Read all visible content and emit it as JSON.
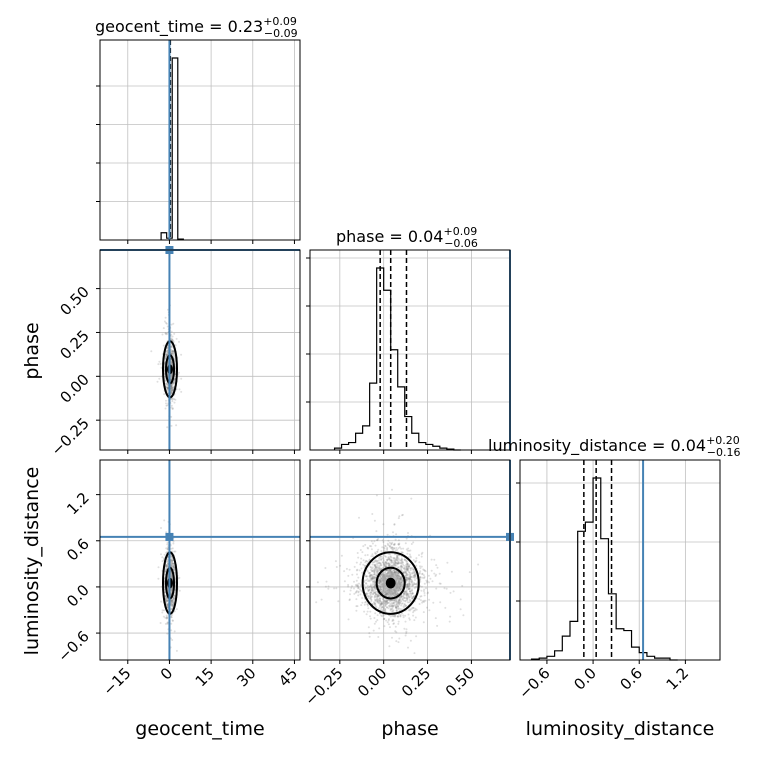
{
  "chart_data": {
    "type": "corner",
    "parameters": [
      "geocent_time",
      "phase",
      "luminosity_distance"
    ],
    "truths": {
      "geocent_time": 0.0,
      "phase": 0.72,
      "luminosity_distance": 0.65
    },
    "colors": {
      "truth": "#4682b4",
      "hist": "#000000",
      "grid": "#c0c0c0",
      "scatter": "#808080"
    },
    "grid": true,
    "titles": [
      {
        "param": "luminosity_distance",
        "prefix": "luminosity_distance = 0.04",
        "plus": "+0.20",
        "minus": "−0.16",
        "median": 0.04,
        "err_plus": 0.2,
        "err_minus": 0.16
      },
      {
        "param": "phase",
        "prefix": "phase = 0.04",
        "plus": "+0.09",
        "minus": "−0.06",
        "median": 0.04,
        "err_plus": 0.09,
        "err_minus": 0.06
      },
      {
        "param": "geocent_time",
        "prefix": "geocent_time = 0.23",
        "plus": "+0.09",
        "minus": "−0.09",
        "median": 0.23,
        "err_plus": 0.09,
        "err_minus": 0.09
      }
    ],
    "axis_labels": {
      "x": [
        "geocent_time",
        "phase",
        "luminosity_distance"
      ],
      "y": [
        "phase",
        "luminosity_distance"
      ]
    },
    "ranges": {
      "geocent_time": [
        -25,
        47
      ],
      "phase": [
        -0.42,
        0.72
      ],
      "luminosity_distance": [
        -0.95,
        1.65
      ]
    },
    "ticks": {
      "geocent_time": {
        "values": [
          -15,
          0,
          15,
          30,
          45
        ],
        "labels": [
          "−15",
          "0",
          "15",
          "30",
          "45"
        ]
      },
      "phase": {
        "values": [
          -0.25,
          0,
          0.25,
          0.5
        ],
        "labels": [
          "−0.25",
          "0.00",
          "0.25",
          "0.50"
        ]
      },
      "luminosity_distance_x": {
        "values": [
          -0.6,
          0,
          0.6,
          1.2
        ],
        "labels": [
          "−0.6",
          "0.0",
          "0.6",
          "1.2"
        ]
      },
      "luminosity_distance_y": {
        "values": [
          -0.6,
          0,
          0.6,
          1.2
        ],
        "labels": [
          "−0.6",
          "0.0",
          "0.6",
          "1.2"
        ]
      }
    },
    "hist_geocent_time": {
      "edges": [
        -3,
        -1,
        1,
        3,
        5
      ],
      "values": [
        0.04,
        0.01,
        1.0,
        0.005
      ],
      "median": 0.23,
      "q16": 0.14,
      "q84": 0.32
    },
    "hist_phase": {
      "edges": [
        -0.28,
        -0.24,
        -0.2,
        -0.16,
        -0.12,
        -0.08,
        -0.04,
        0.0,
        0.04,
        0.08,
        0.12,
        0.16,
        0.2,
        0.24,
        0.28,
        0.32,
        0.36,
        0.4,
        0.44
      ],
      "values": [
        0.01,
        0.03,
        0.04,
        0.09,
        0.13,
        0.36,
        0.98,
        0.86,
        0.54,
        0.34,
        0.18,
        0.09,
        0.04,
        0.03,
        0.02,
        0.01,
        0.005,
        0.0
      ],
      "median": 0.04,
      "q16": -0.02,
      "q84": 0.13
    },
    "hist_luminosity_distance": {
      "edges": [
        -0.8,
        -0.7,
        -0.6,
        -0.5,
        -0.4,
        -0.3,
        -0.2,
        -0.1,
        0.0,
        0.1,
        0.2,
        0.3,
        0.4,
        0.5,
        0.6,
        0.7,
        0.8,
        0.9,
        1.0,
        1.1
      ],
      "values": [
        0.005,
        0.01,
        0.02,
        0.05,
        0.13,
        0.21,
        0.7,
        0.75,
        0.99,
        0.66,
        0.36,
        0.17,
        0.16,
        0.07,
        0.04,
        0.02,
        0.01,
        0.01,
        0.0
      ],
      "median": 0.04,
      "q16": -0.12,
      "q84": 0.24
    },
    "scatter_spreads": {
      "geocent_time": {
        "center": 0.2,
        "sigma": 0.9
      },
      "phase": {
        "center": 0.04,
        "sigma": 0.08
      },
      "luminosity_distance": {
        "center": 0.05,
        "sigma": 0.2
      }
    }
  }
}
